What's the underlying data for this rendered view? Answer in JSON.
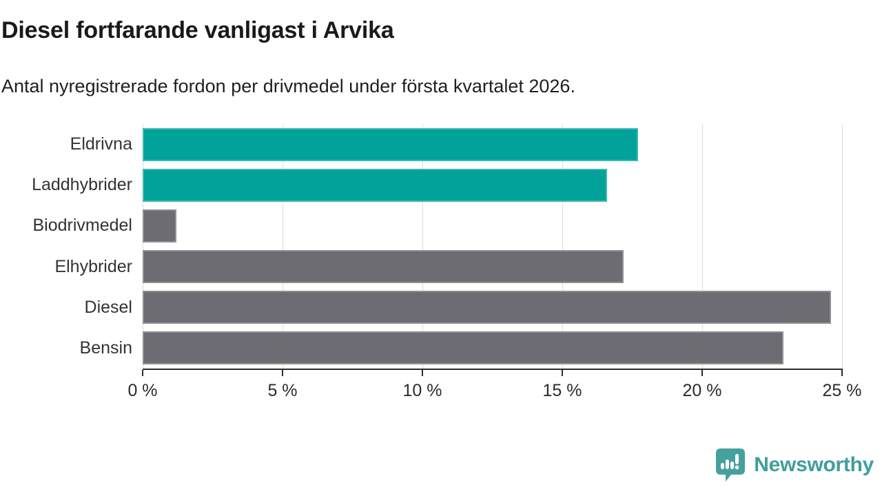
{
  "header": {
    "title": "Diesel fortfarande vanligast i Arvika",
    "subtitle": "Antal nyregistrerade fordon per drivmedel under första kvartalet 2026."
  },
  "chart_data": {
    "type": "bar",
    "orientation": "horizontal",
    "title": "Diesel fortfarande vanligast i Arvika",
    "subtitle": "Antal nyregistrerade fordon per drivmedel under första kvartalet 2026.",
    "categories": [
      "Eldrivna",
      "Laddhybrider",
      "Biodrivmedel",
      "Elhybrider",
      "Diesel",
      "Bensin"
    ],
    "values": [
      17.7,
      16.6,
      1.2,
      17.2,
      24.6,
      22.9
    ],
    "unit": "%",
    "bar_colors": [
      "#00a29a",
      "#00a29a",
      "#6c6c72",
      "#6c6c72",
      "#6c6c72",
      "#6c6c72"
    ],
    "xlim": [
      0,
      25
    ],
    "ticks": [
      0,
      5,
      10,
      15,
      20,
      25
    ],
    "tick_labels": [
      "0 %",
      "5 %",
      "10 %",
      "15 %",
      "20 %",
      "25 %"
    ],
    "grid": "vertical",
    "legend": "none",
    "colors": {
      "accent": "#00a29a",
      "neutral": "#6c6c72",
      "gridline": "#dcdcdc",
      "axis": "#2b2b2b"
    }
  },
  "branding": {
    "logo_text": "Newsworthy",
    "logo_color": "#3f9e9c",
    "logo_icon": "bar-chart-speech-bubble"
  }
}
